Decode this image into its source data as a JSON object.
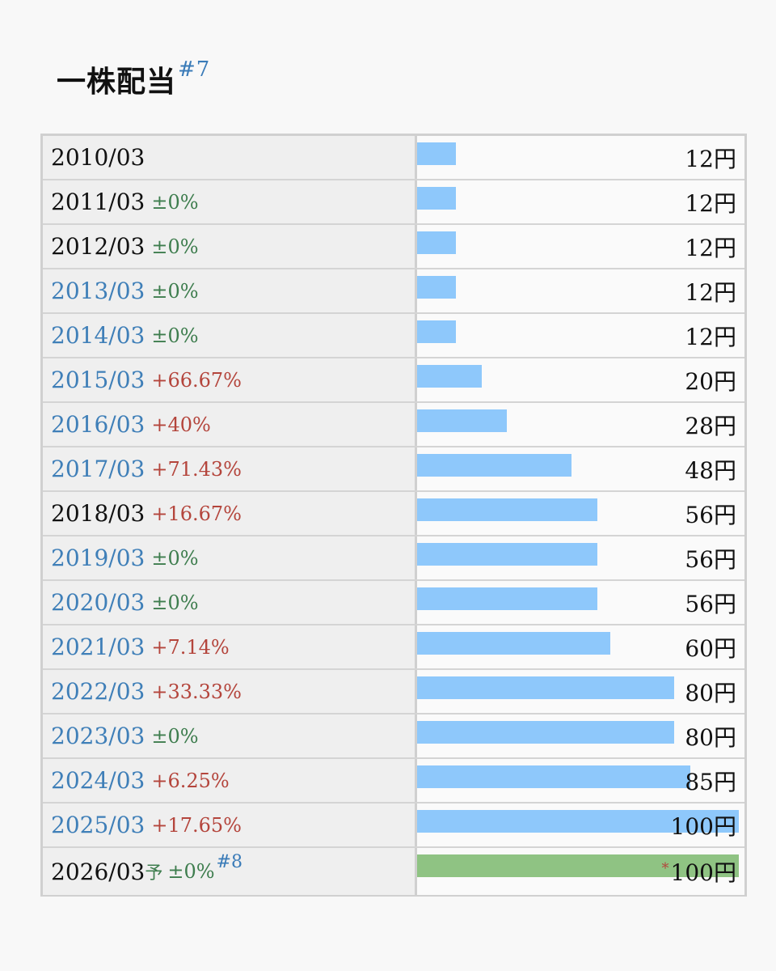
{
  "title": "一株配当",
  "title_note": "#7",
  "colors": {
    "bar_actual": "#8ec8fb",
    "bar_forecast": "#8fc383",
    "change_zero": "#3e7d4e",
    "change_positive": "#b4453c",
    "link": "#3f7fb8"
  },
  "chart_data": {
    "type": "bar",
    "orientation": "horizontal",
    "title": "一株配当",
    "unit": "円",
    "xlim": [
      0,
      100
    ],
    "categories": [
      "2010/03",
      "2011/03",
      "2012/03",
      "2013/03",
      "2014/03",
      "2015/03",
      "2016/03",
      "2017/03",
      "2018/03",
      "2019/03",
      "2020/03",
      "2021/03",
      "2022/03",
      "2023/03",
      "2024/03",
      "2025/03",
      "2026/03"
    ],
    "values": [
      12,
      12,
      12,
      12,
      12,
      20,
      28,
      48,
      56,
      56,
      56,
      60,
      80,
      80,
      85,
      100,
      100
    ],
    "rows": [
      {
        "period": "2010/03",
        "link": false,
        "change": "",
        "change_type": "none",
        "value": 12,
        "value_label": "12円"
      },
      {
        "period": "2011/03",
        "link": false,
        "change": "±0%",
        "change_type": "zero",
        "value": 12,
        "value_label": "12円"
      },
      {
        "period": "2012/03",
        "link": false,
        "change": "±0%",
        "change_type": "zero",
        "value": 12,
        "value_label": "12円"
      },
      {
        "period": "2013/03",
        "link": true,
        "change": "±0%",
        "change_type": "zero",
        "value": 12,
        "value_label": "12円"
      },
      {
        "period": "2014/03",
        "link": true,
        "change": "±0%",
        "change_type": "zero",
        "value": 12,
        "value_label": "12円"
      },
      {
        "period": "2015/03",
        "link": true,
        "change": "+66.67%",
        "change_type": "pos",
        "value": 20,
        "value_label": "20円"
      },
      {
        "period": "2016/03",
        "link": true,
        "change": "+40%",
        "change_type": "pos",
        "value": 28,
        "value_label": "28円"
      },
      {
        "period": "2017/03",
        "link": true,
        "change": "+71.43%",
        "change_type": "pos",
        "value": 48,
        "value_label": "48円"
      },
      {
        "period": "2018/03",
        "link": false,
        "change": "+16.67%",
        "change_type": "pos",
        "value": 56,
        "value_label": "56円"
      },
      {
        "period": "2019/03",
        "link": true,
        "change": "±0%",
        "change_type": "zero",
        "value": 56,
        "value_label": "56円"
      },
      {
        "period": "2020/03",
        "link": true,
        "change": "±0%",
        "change_type": "zero",
        "value": 56,
        "value_label": "56円"
      },
      {
        "period": "2021/03",
        "link": true,
        "change": "+7.14%",
        "change_type": "pos",
        "value": 60,
        "value_label": "60円"
      },
      {
        "period": "2022/03",
        "link": true,
        "change": "+33.33%",
        "change_type": "pos",
        "value": 80,
        "value_label": "80円"
      },
      {
        "period": "2023/03",
        "link": true,
        "change": "±0%",
        "change_type": "zero",
        "value": 80,
        "value_label": "80円"
      },
      {
        "period": "2024/03",
        "link": true,
        "change": "+6.25%",
        "change_type": "pos",
        "value": 85,
        "value_label": "85円"
      },
      {
        "period": "2025/03",
        "link": true,
        "change": "+17.65%",
        "change_type": "pos",
        "value": 100,
        "value_label": "100円"
      },
      {
        "period": "2026/03",
        "link": false,
        "forecast": true,
        "forecast_mark": "予",
        "change": "±0%",
        "change_type": "zero",
        "note": "#8",
        "asterisk": "*",
        "value": 100,
        "value_label": "100円"
      }
    ]
  }
}
